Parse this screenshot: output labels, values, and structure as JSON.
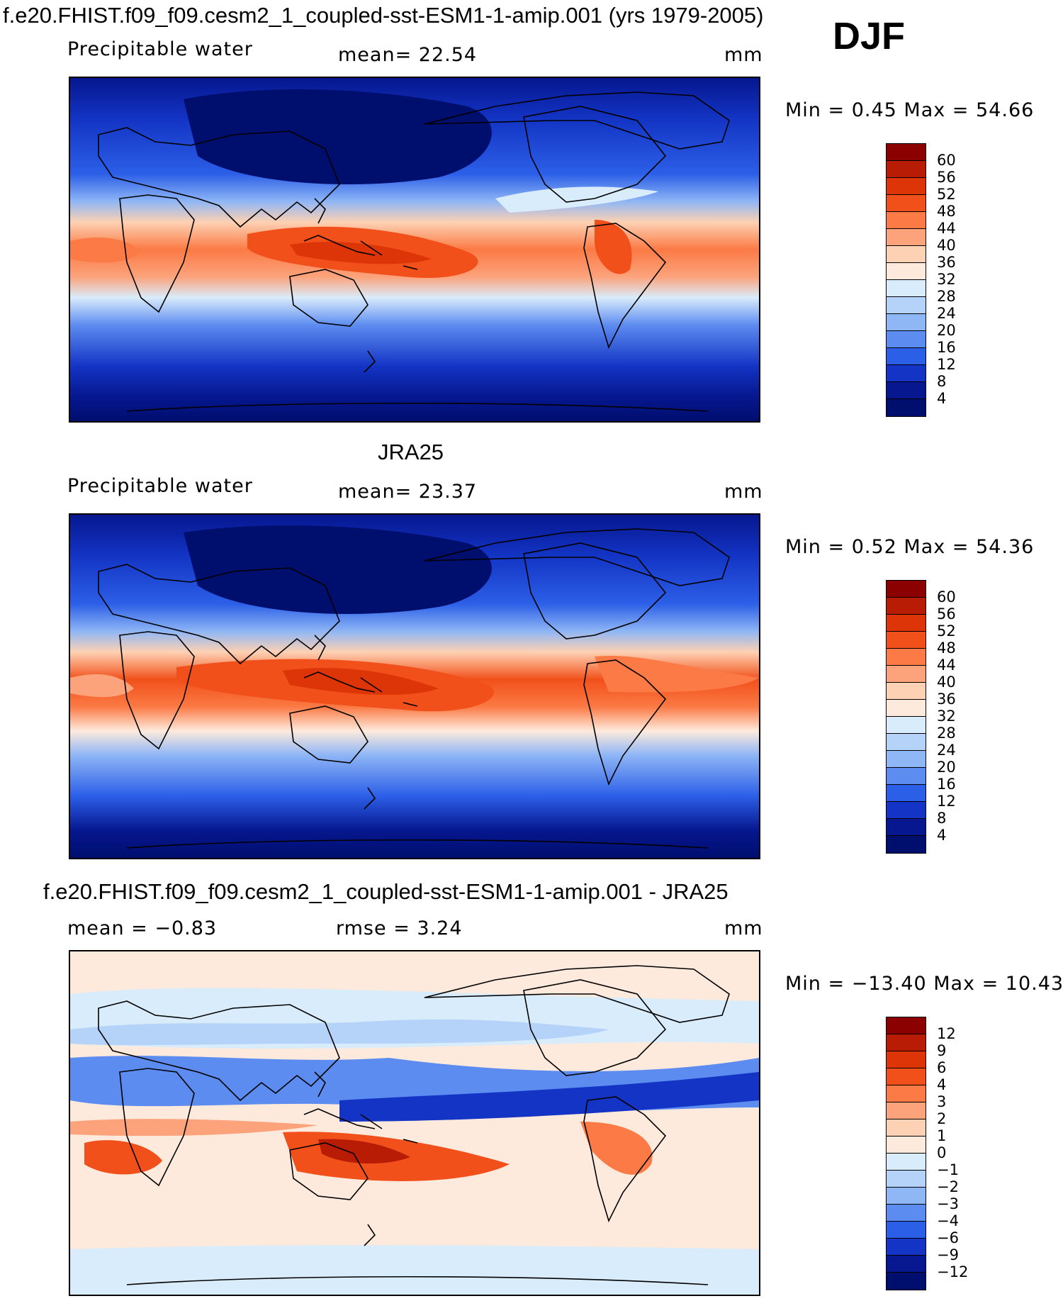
{
  "header": {
    "case_title": "f.e20.FHIST.f09_f09.cesm2_1_coupled-sst-ESM1-1-amip.001 (yrs 1979-2005)",
    "season": "DJF"
  },
  "panels": [
    {
      "title": "",
      "variable": "Precipitable water",
      "stat1": "mean=   22.54",
      "stat2": "",
      "units": "mm",
      "minmax": "Min =    0.45  Max =    54.66",
      "levels": [
        "60",
        "56",
        "52",
        "48",
        "44",
        "40",
        "36",
        "32",
        "28",
        "24",
        "20",
        "16",
        "12",
        "8",
        "4"
      ],
      "colors": [
        "#8b0000",
        "#b81c05",
        "#dd3508",
        "#f2501a",
        "#fb7a45",
        "#fca37c",
        "#fdd1b3",
        "#fdeadc",
        "#d9ecfb",
        "#b5d2f9",
        "#8fb6f5",
        "#5d8cf0",
        "#2c5fe8",
        "#1334c4",
        "#06178f",
        "#000e6e"
      ]
    },
    {
      "title": "JRA25",
      "variable": "Precipitable water",
      "stat1": "mean=   23.37",
      "stat2": "",
      "units": "mm",
      "minmax": "Min =    0.52  Max =    54.36",
      "levels": [
        "60",
        "56",
        "52",
        "48",
        "44",
        "40",
        "36",
        "32",
        "28",
        "24",
        "20",
        "16",
        "12",
        "8",
        "4"
      ],
      "colors": [
        "#8b0000",
        "#b81c05",
        "#dd3508",
        "#f2501a",
        "#fb7a45",
        "#fca37c",
        "#fdd1b3",
        "#fdeadc",
        "#d9ecfb",
        "#b5d2f9",
        "#8fb6f5",
        "#5d8cf0",
        "#2c5fe8",
        "#1334c4",
        "#06178f",
        "#000e6e"
      ]
    },
    {
      "title": "f.e20.FHIST.f09_f09.cesm2_1_coupled-sst-ESM1-1-amip.001 - JRA25",
      "variable": "",
      "stat1": "mean =   −0.83",
      "stat2": "rmse =    3.24",
      "units": "mm",
      "minmax": "Min = −13.40  Max =    10.43",
      "levels": [
        "12",
        "9",
        "6",
        "4",
        "3",
        "2",
        "1",
        "0",
        "−1",
        "−2",
        "−3",
        "−4",
        "−6",
        "−9",
        "−12"
      ],
      "colors": [
        "#8b0000",
        "#b81c05",
        "#dd3508",
        "#f2501a",
        "#fb7a45",
        "#fca37c",
        "#fdd1b3",
        "#fdeadc",
        "#d9ecfb",
        "#b5d2f9",
        "#8fb6f5",
        "#5d8cf0",
        "#2c5fe8",
        "#1334c4",
        "#06178f",
        "#000e6e"
      ]
    }
  ]
}
